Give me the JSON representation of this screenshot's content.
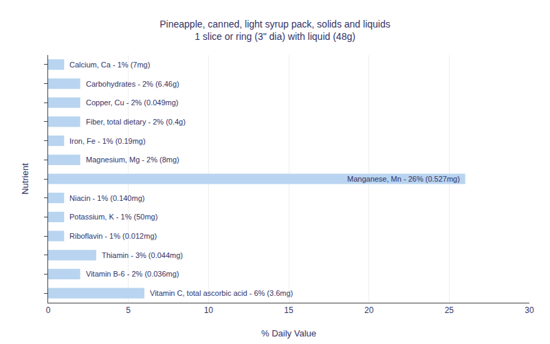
{
  "chart_data": {
    "type": "bar",
    "orientation": "horizontal",
    "title": "Pineapple, canned, light syrup pack, solids and liquids",
    "subtitle": "1 slice or ring (3\" dia) with liquid (48g)",
    "x_label": "% Daily Value",
    "y_label": "Nutrient",
    "categories": [
      "Calcium, Ca - 1% (7mg)",
      "Carbohydrates - 2% (6.46g)",
      "Copper, Cu - 2% (0.049mg)",
      "Fiber, total dietary - 2% (0.4g)",
      "Iron, Fe - 1% (0.19mg)",
      "Magnesium, Mg - 2% (8mg)",
      "Manganese, Mn - 26% (0.527mg)",
      "Niacin - 1% (0.140mg)",
      "Potassium, K - 1% (50mg)",
      "Riboflavin - 1% (0.012mg)",
      "Thiamin - 3% (0.044mg)",
      "Vitamin B-6 - 2% (0.036mg)",
      "Vitamin C, total ascorbic acid - 6% (3.6mg)"
    ],
    "values": [
      1,
      2,
      2,
      2,
      1,
      2,
      26,
      1,
      1,
      1,
      3,
      2,
      6
    ],
    "color": "#b8d4f0",
    "xlim": [
      0,
      30
    ],
    "xticks": [
      0,
      5,
      10,
      15,
      20,
      25,
      30
    ],
    "grid": true,
    "tick_labels": "x"
  }
}
